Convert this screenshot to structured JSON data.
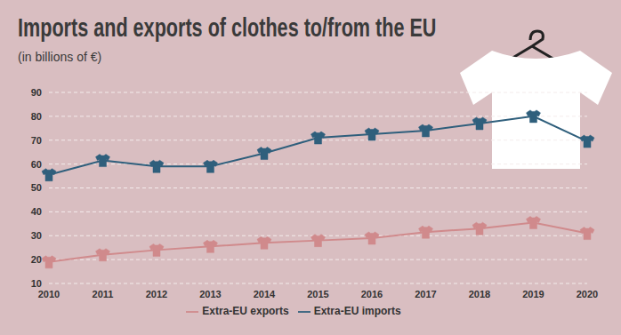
{
  "chart_data": {
    "type": "line",
    "title": "Imports and exports of clothes to/from the EU",
    "subtitle": "(in billions of €)",
    "categories": [
      "2010",
      "2011",
      "2012",
      "2013",
      "2014",
      "2015",
      "2016",
      "2017",
      "2018",
      "2019",
      "2020"
    ],
    "series": [
      {
        "name": "Extra-EU imports",
        "color": "#2f5f7c",
        "marker": "shirt",
        "values": [
          55.5,
          61.5,
          59,
          59,
          64.5,
          71,
          72.5,
          74,
          77,
          80,
          69.5
        ]
      },
      {
        "name": "Extra-EU exports",
        "color": "#d08a8c",
        "marker": "shirt",
        "values": [
          19,
          22,
          24,
          25.5,
          27,
          28,
          29,
          31.5,
          33,
          35.5,
          31
        ]
      }
    ],
    "ylim": [
      10,
      90
    ],
    "yticks": [
      10,
      20,
      30,
      40,
      50,
      60,
      70,
      80,
      90
    ],
    "grid": true,
    "legend": "bottom"
  }
}
